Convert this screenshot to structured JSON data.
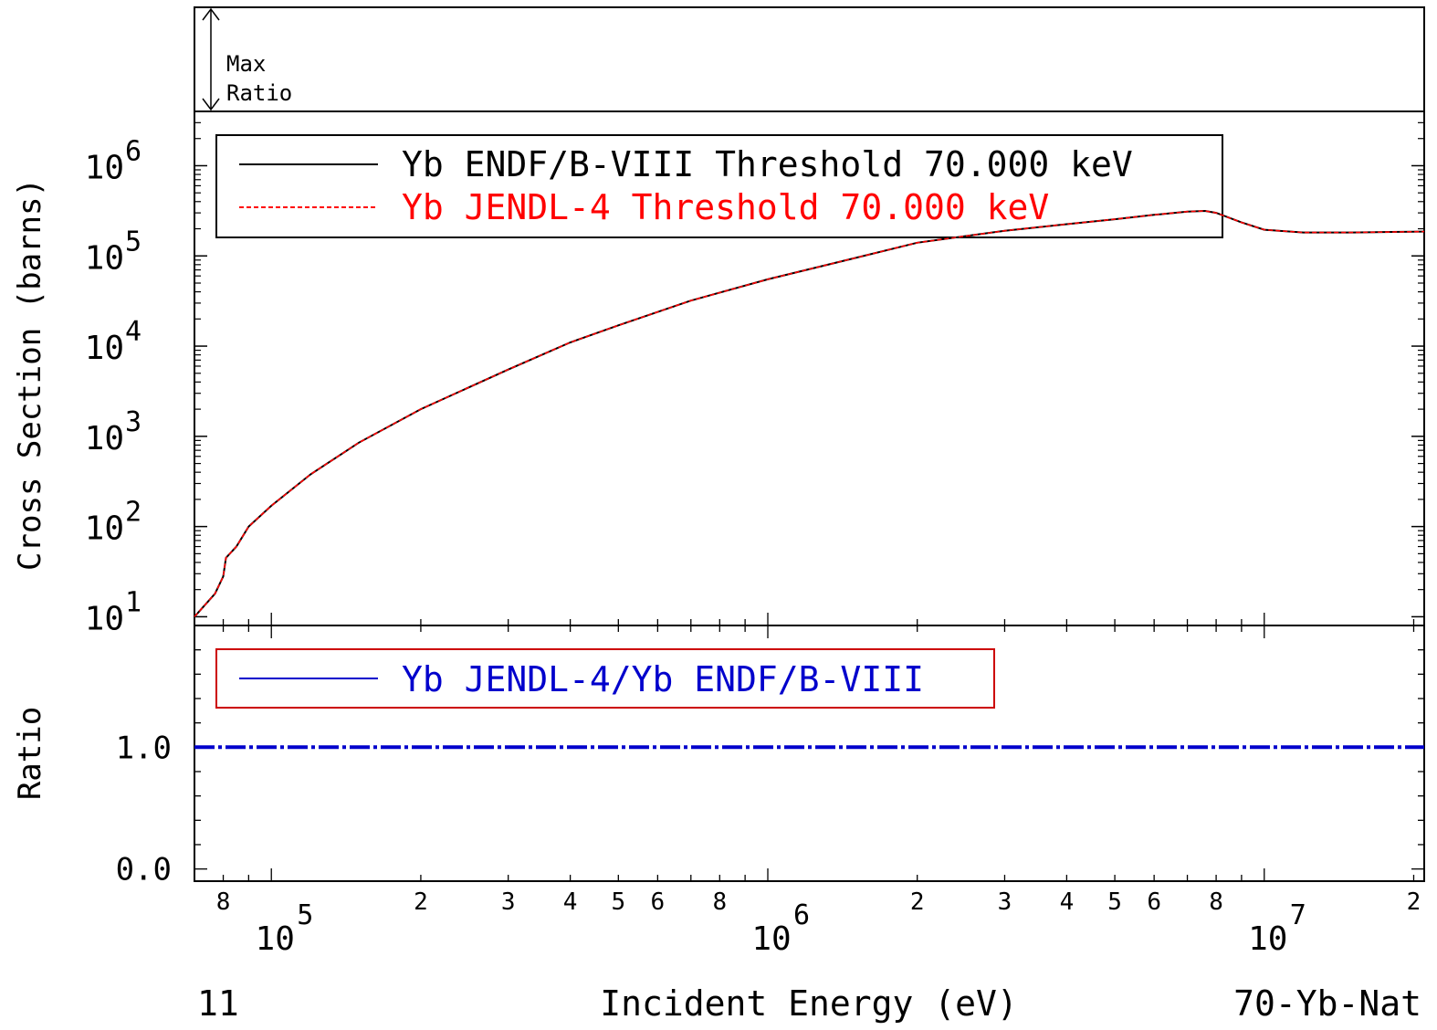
{
  "chart_data": [
    {
      "panel": "max-ratio",
      "type": "line",
      "label_line1": "Max",
      "label_line2": "Ratio"
    },
    {
      "panel": "cross-section",
      "type": "line",
      "ylabel": "Cross Section (barns)",
      "yscale": "log",
      "xscale": "log",
      "xlim": [
        70000,
        21000000
      ],
      "ylim": [
        8,
        4000000
      ],
      "ytick_values": [
        10,
        100,
        1000,
        10000,
        100000,
        1000000
      ],
      "ytick_base": "10",
      "ytick_exponents": [
        "1",
        "2",
        "3",
        "4",
        "5",
        "6"
      ],
      "legend_position": "top-left",
      "series": [
        {
          "name": "Yb ENDF/B-VIII Threshold 70.000 keV",
          "color": "#000000",
          "style": "solid",
          "x": [
            70000,
            77000,
            80000,
            81000,
            85000,
            90000,
            100000,
            120000,
            150000,
            200000,
            300000,
            400000,
            500000,
            700000,
            1000000,
            1500000,
            2000000,
            3000000,
            4000000,
            5000000,
            6000000,
            7000000,
            7600000,
            8000000,
            9000000,
            10000000,
            12000000,
            15000000,
            21000000
          ],
          "y": [
            10,
            18,
            28,
            45,
            60,
            100,
            170,
            380,
            850,
            2000,
            5500,
            11000,
            17000,
            32000,
            55000,
            95000,
            140000,
            190000,
            225000,
            255000,
            285000,
            310000,
            315000,
            300000,
            235000,
            195000,
            182000,
            182000,
            186000
          ]
        },
        {
          "name": "Yb JENDL-4 Threshold 70.000 keV",
          "color": "#ff0000",
          "style": "dashed",
          "x": [
            70000,
            77000,
            80000,
            81000,
            85000,
            90000,
            100000,
            120000,
            150000,
            200000,
            300000,
            400000,
            500000,
            700000,
            1000000,
            1500000,
            2000000,
            3000000,
            4000000,
            5000000,
            6000000,
            7000000,
            7600000,
            8000000,
            9000000,
            10000000,
            12000000,
            15000000,
            21000000
          ],
          "y": [
            10,
            18,
            28,
            45,
            60,
            100,
            170,
            380,
            850,
            2000,
            5500,
            11000,
            17000,
            32000,
            55000,
            95000,
            140000,
            190000,
            225000,
            255000,
            285000,
            310000,
            315000,
            300000,
            235000,
            195000,
            182000,
            182000,
            186000
          ]
        }
      ]
    },
    {
      "panel": "ratio",
      "type": "line",
      "ylabel": "Ratio",
      "ylim": [
        -0.1,
        2.0
      ],
      "ytick_labels": [
        "0.0",
        "1.0"
      ],
      "ytick_values": [
        0.0,
        1.0
      ],
      "legend_position": "top-left",
      "series": [
        {
          "name": "Yb JENDL-4/Yb ENDF/B-VIII",
          "color": "#0000cc",
          "style": "dash-dot",
          "x": [
            70000,
            21000000
          ],
          "y": [
            1.0,
            1.0
          ]
        }
      ]
    }
  ],
  "x_axis": {
    "label": "Incident Energy (eV)",
    "scale": "log",
    "decade_base": "10",
    "decades": [
      {
        "value": 100000,
        "exponent": "5"
      },
      {
        "value": 1000000,
        "exponent": "6"
      },
      {
        "value": 10000000,
        "exponent": "7"
      }
    ],
    "minor_labels": [
      {
        "value": 80000,
        "text": "8"
      },
      {
        "value": 200000,
        "text": "2"
      },
      {
        "value": 300000,
        "text": "3"
      },
      {
        "value": 400000,
        "text": "4"
      },
      {
        "value": 500000,
        "text": "5"
      },
      {
        "value": 600000,
        "text": "6"
      },
      {
        "value": 800000,
        "text": "8"
      },
      {
        "value": 2000000,
        "text": "2"
      },
      {
        "value": 3000000,
        "text": "3"
      },
      {
        "value": 4000000,
        "text": "4"
      },
      {
        "value": 5000000,
        "text": "5"
      },
      {
        "value": 6000000,
        "text": "6"
      },
      {
        "value": 8000000,
        "text": "8"
      },
      {
        "value": 20000000,
        "text": "2"
      }
    ]
  },
  "footer": {
    "left": "11",
    "right": "70-Yb-Nat"
  },
  "colors": {
    "axes": "#000000",
    "endf": "#000000",
    "jendl": "#ff0000",
    "ratio": "#0000cc"
  }
}
